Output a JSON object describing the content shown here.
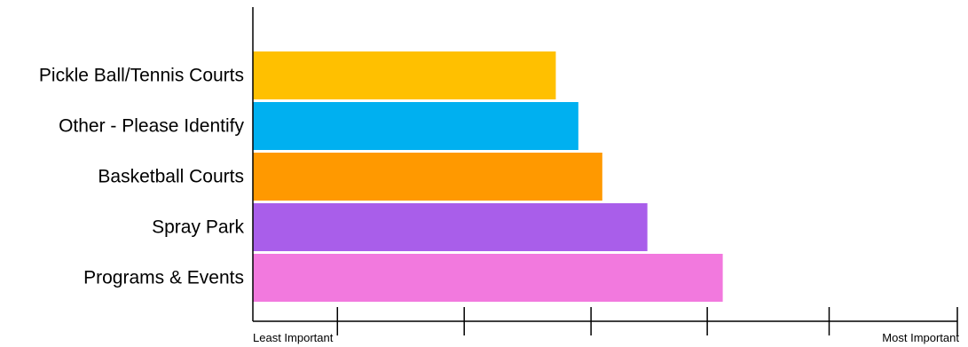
{
  "chart_data": {
    "type": "bar",
    "orientation": "horizontal",
    "title": "",
    "xlabel": "",
    "ylabel": "",
    "categories": [
      "Pickle Ball/Tennis Courts",
      "Other - Please Identify",
      "Basketball Courts",
      "Spray Park",
      "Programs & Events"
    ],
    "values": [
      0.43,
      0.462,
      0.496,
      0.56,
      0.667
    ],
    "colors": [
      "#FFC000",
      "#00B0F0",
      "#FF9900",
      "#A95EEA",
      "#F279DE"
    ],
    "xlim": [
      0,
      1
    ],
    "x_axis_end_labels": {
      "min": "Least Important",
      "max": "Most Important"
    },
    "x_ticks": [
      0.12,
      0.3,
      0.48,
      0.645,
      0.818,
      1.0
    ],
    "grid": false,
    "legend": "none"
  }
}
